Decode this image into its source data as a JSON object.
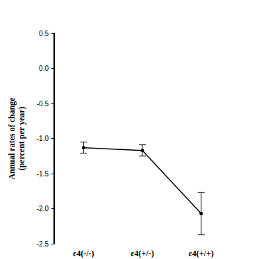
{
  "chart_data": {
    "type": "line",
    "y_label": "Annual rates of change\n(percent per year)",
    "categories": [
      "ε4(-/-)",
      "ε4(+/-)",
      "ε4(+/+)"
    ],
    "values": [
      -1.13,
      -1.17,
      -2.07
    ],
    "error": [
      0.08,
      0.08,
      0.3
    ],
    "color": "#000000",
    "marker": "circle",
    "ylim": [
      -2.5,
      0.5
    ],
    "yticks": [
      -2.5,
      {
        "value": -2,
        "label": "-2.0"
      },
      -1.5,
      {
        "value": -1,
        "label": "-1.0"
      },
      -0.5,
      {
        "value": 0,
        "label": "0.0"
      },
      0.5
    ],
    "grid": false
  }
}
